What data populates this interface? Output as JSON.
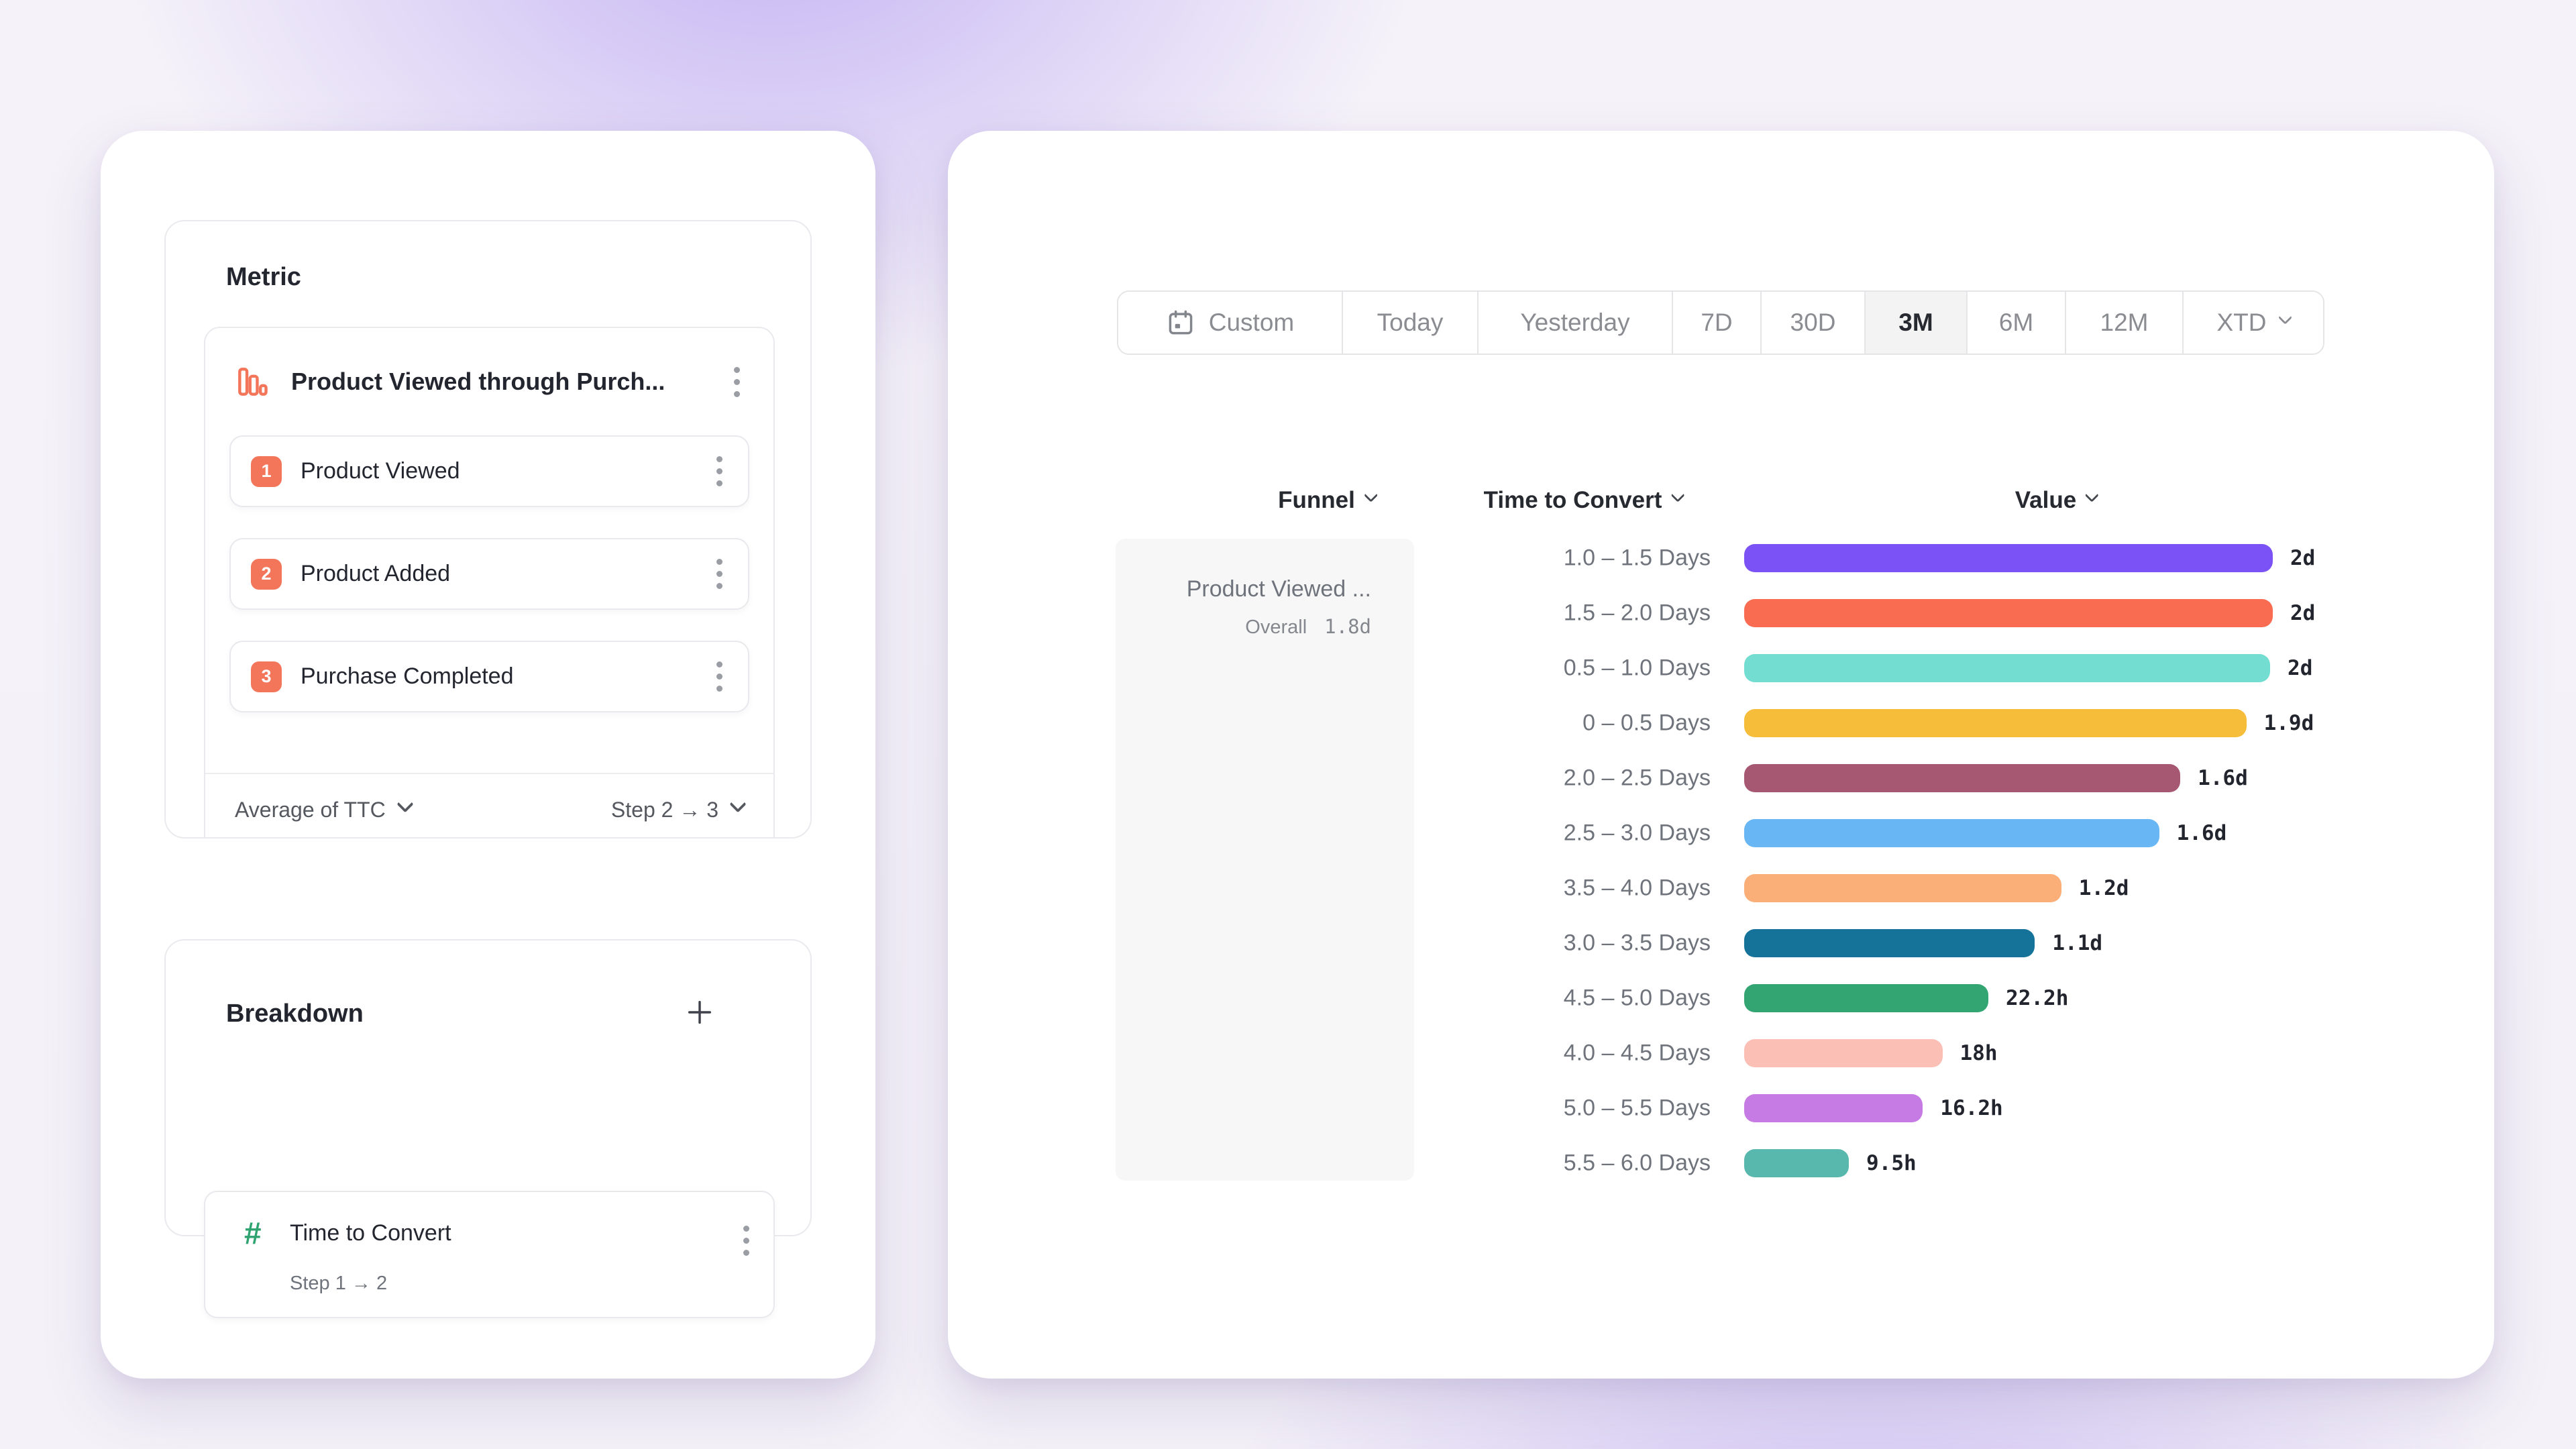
{
  "accent_colors": {
    "coral": "#f4765a",
    "green": "#2fa470",
    "selected_segment_bg": "#f3f3f4"
  },
  "left_panel": {
    "metric": {
      "title": "Metric",
      "funnel": {
        "title": "Product Viewed through Purch...",
        "steps": [
          {
            "number": "1",
            "label": "Product Viewed"
          },
          {
            "number": "2",
            "label": "Product Added"
          },
          {
            "number": "3",
            "label": "Purchase Completed"
          }
        ],
        "measurement": "Average of TTC",
        "step_range": "Step 2 → 3"
      }
    },
    "breakdown": {
      "title": "Breakdown",
      "item": {
        "label": "Time to Convert",
        "sublabel": "Step 1 → 2"
      }
    }
  },
  "date_picker": {
    "options": [
      {
        "label": "Custom",
        "selected": false
      },
      {
        "label": "Today",
        "selected": false
      },
      {
        "label": "Yesterday",
        "selected": false
      },
      {
        "label": "7D",
        "selected": false
      },
      {
        "label": "30D",
        "selected": false
      },
      {
        "label": "3M",
        "selected": true
      },
      {
        "label": "6M",
        "selected": false
      },
      {
        "label": "12M",
        "selected": false
      },
      {
        "label": "XTD",
        "selected": false
      }
    ]
  },
  "table": {
    "headers": [
      {
        "label": "Funnel"
      },
      {
        "label": "Time to Convert"
      },
      {
        "label": "Value"
      }
    ],
    "funnel_cell": {
      "name": "Product Viewed ...",
      "overall_label": "Overall",
      "overall_value": "1.8d"
    },
    "rows": [
      {
        "bucket": "1.0 – 1.5 Days",
        "value": "2d",
        "color": "#7b52f5",
        "width_pct": 100
      },
      {
        "bucket": "1.5 – 2.0 Days",
        "value": "2d",
        "color": "#f96c51",
        "width_pct": 100
      },
      {
        "bucket": "0.5 – 1.0 Days",
        "value": "2d",
        "color": "#74ddd1",
        "width_pct": 99.5
      },
      {
        "bucket": "0 – 0.5 Days",
        "value": "1.9d",
        "color": "#f5bd3a",
        "width_pct": 95
      },
      {
        "bucket": "2.0 – 2.5 Days",
        "value": "1.6d",
        "color": "#a65872",
        "width_pct": 82.5
      },
      {
        "bucket": "2.5 – 3.0 Days",
        "value": "1.6d",
        "color": "#68b6f3",
        "width_pct": 78.5
      },
      {
        "bucket": "3.5 – 4.0 Days",
        "value": "1.2d",
        "color": "#fbaf78",
        "width_pct": 60
      },
      {
        "bucket": "3.0 – 3.5 Days",
        "value": "1.1d",
        "color": "#15739a",
        "width_pct": 55
      },
      {
        "bucket": "4.5 – 5.0 Days",
        "value": "22.2h",
        "color": "#33a572",
        "width_pct": 46.2
      },
      {
        "bucket": "4.0 – 4.5 Days",
        "value": "18h",
        "color": "#fcbfb6",
        "width_pct": 37.5
      },
      {
        "bucket": "5.0 – 5.5 Days",
        "value": "16.2h",
        "color": "#c67ae3",
        "width_pct": 33.8
      },
      {
        "bucket": "5.5 – 6.0 Days",
        "value": "9.5h",
        "color": "#58b8ae",
        "width_pct": 19.8
      }
    ]
  },
  "chart_data": {
    "type": "bar",
    "orientation": "horizontal",
    "title": "Time to Convert breakdown — Product Viewed through Purchase funnel",
    "categories": [
      "1.0 – 1.5 Days",
      "1.5 – 2.0 Days",
      "0.5 – 1.0 Days",
      "0 – 0.5 Days",
      "2.0 – 2.5 Days",
      "2.5 – 3.0 Days",
      "3.5 – 4.0 Days",
      "3.0 – 3.5 Days",
      "4.5 – 5.0 Days",
      "4.0 – 4.5 Days",
      "5.0 – 5.5 Days",
      "5.5 – 6.0 Days"
    ],
    "values_hours": [
      48,
      48,
      47.8,
      45.6,
      39.6,
      37.7,
      28.8,
      26.4,
      22.2,
      18,
      16.2,
      9.5
    ],
    "value_labels": [
      "2d",
      "2d",
      "2d",
      "1.9d",
      "1.6d",
      "1.6d",
      "1.2d",
      "1.1d",
      "22.2h",
      "18h",
      "16.2h",
      "9.5h"
    ],
    "colors": [
      "#7b52f5",
      "#f96c51",
      "#74ddd1",
      "#f5bd3a",
      "#a65872",
      "#68b6f3",
      "#fbaf78",
      "#15739a",
      "#33a572",
      "#fcbfb6",
      "#c67ae3",
      "#58b8ae"
    ],
    "xlim_hours": [
      0,
      48
    ],
    "grid": false,
    "legend": false,
    "annotations": {
      "funnel": "Product Viewed ...",
      "overall_time_to_convert": "1.8d",
      "date_range": "3M"
    }
  }
}
